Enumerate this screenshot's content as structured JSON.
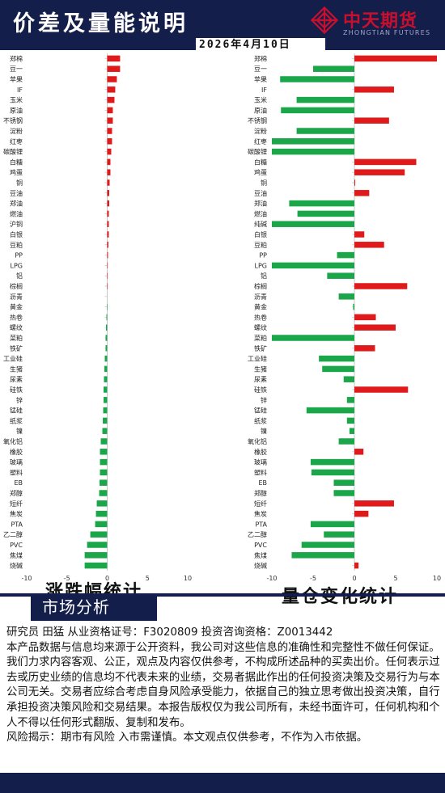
{
  "header": {
    "title": "价差及量能说明",
    "logo_text": "中天期货",
    "logo_sub": "ZHONGTIAN FUTURES",
    "date": "2026年4月10日",
    "brand_color": "#c8102e",
    "header_bg": "#141e4a"
  },
  "captions": {
    "left": "涨跌幅统计",
    "right": "量仓变化统计"
  },
  "section_tab": "市场分析",
  "info": {
    "line1": "研究员 田猛  从业资格证号：F3020809 投资咨询资格：Z0013442",
    "disclaimer": "本产品数据与信息均来源于公开资料，我公司对这些信息的准确性和完整性不做任何保证。我们力求内容客观、公正，观点及内容仅供参考，不构成所述品种的买卖出价。任何表示过去或历史业绩的信息均不代表未来的业绩，交易者据此作出的任何投资决策及交易行为与本公司无关。交易者应综合考虑自身风险承受能力，依据自己的独立思考做出投资决策，自行承担投资决策风险和交易结果。本报告版权仅为我公司所有，未经书面许可，任何机构和个人不得以任何形式翻版、复制和发布。",
    "risk": "风险揭示：期市有风险 入市需谨慎。本文观点仅供参考，不作为入市依据。"
  },
  "chart_data": [
    {
      "type": "bar",
      "orientation": "horizontal",
      "xlim": [
        -10,
        10
      ],
      "xticks": [
        "-10",
        "-5",
        "0",
        "5",
        "10"
      ],
      "colors": {
        "positive": "#e0191b",
        "negative": "#1ca64a"
      },
      "categories": [
        "郑棉",
        "豆一",
        "苹果",
        "IF",
        "玉米",
        "原油",
        "不锈钢",
        "淀粉",
        "红枣",
        "碳酸锂",
        "白糖",
        "鸡蛋",
        "铜",
        "豆油",
        "郑油",
        "燃油",
        "沪铜",
        "白银",
        "豆粕",
        "PP",
        "LPG",
        "铝",
        "棕榈",
        "沥青",
        "黄金",
        "热卷",
        "螺纹",
        "菜粕",
        "铁矿",
        "工业硅",
        "生猪",
        "尿素",
        "硅铁",
        "锌",
        "锰硅",
        "纸浆",
        "镍",
        "氧化铝",
        "橡胶",
        "玻璃",
        "塑料",
        "EB",
        "郑醇",
        "短纤",
        "焦炭",
        "PTA",
        "乙二醇",
        "PVC",
        "焦煤",
        "烧碱"
      ],
      "values": [
        1.6,
        1.6,
        1.2,
        1.0,
        0.9,
        0.7,
        0.7,
        0.6,
        0.6,
        0.5,
        0.4,
        0.4,
        0.3,
        0.25,
        0.25,
        0.2,
        0.2,
        0.2,
        0.15,
        0.1,
        0.05,
        0.05,
        0.05,
        0,
        -0.05,
        -0.1,
        -0.15,
        -0.2,
        -0.2,
        -0.3,
        -0.35,
        -0.4,
        -0.45,
        -0.45,
        -0.5,
        -0.55,
        -0.6,
        -0.8,
        -0.9,
        -0.9,
        -0.9,
        -0.95,
        -1.0,
        -1.3,
        -1.4,
        -1.5,
        -2.1,
        -2.5,
        -2.8,
        -2.8
      ]
    },
    {
      "type": "bar",
      "orientation": "horizontal",
      "xlim": [
        -10,
        10
      ],
      "xticks": [
        "-10",
        "-5",
        "0",
        "5",
        "10"
      ],
      "colors": {
        "positive": "#e0191b",
        "negative": "#1ca64a"
      },
      "categories": [
        "郑棉",
        "豆一",
        "苹果",
        "IF",
        "玉米",
        "原油",
        "不锈钢",
        "淀粉",
        "红枣",
        "碳酸锂",
        "白糖",
        "鸡蛋",
        "铜",
        "豆油",
        "郑油",
        "燃油",
        "纯碱",
        "白银",
        "豆粕",
        "PP",
        "LPG",
        "铝",
        "棕榈",
        "沥青",
        "黄金",
        "热卷",
        "螺纹",
        "菜粕",
        "铁矿",
        "工业硅",
        "生猪",
        "尿素",
        "硅铁",
        "锌",
        "锰硅",
        "纸浆",
        "镍",
        "氧化铝",
        "橡胶",
        "玻璃",
        "塑料",
        "EB",
        "郑醇",
        "短纤",
        "焦炭",
        "PTA",
        "乙二醇",
        "PVC",
        "焦煤",
        "烧碱"
      ],
      "values": [
        10,
        -5,
        -9,
        4.8,
        -7,
        -8.9,
        4.2,
        -7,
        -10,
        -10,
        7.5,
        6.1,
        0.1,
        1.8,
        -7.9,
        -6.9,
        -10,
        1.2,
        3.6,
        -2.1,
        -10,
        -3.3,
        6.4,
        -1.9,
        -0.15,
        2.6,
        5,
        -10,
        2.5,
        -4.3,
        -3.9,
        -1.3,
        6.5,
        -0.9,
        -5.8,
        -0.9,
        -0.6,
        -1.9,
        1.1,
        -5.3,
        -5.2,
        -2.5,
        -2.5,
        4.8,
        1.7,
        -5.3,
        -3.7,
        -6.4,
        -7.6,
        0.5
      ]
    }
  ]
}
